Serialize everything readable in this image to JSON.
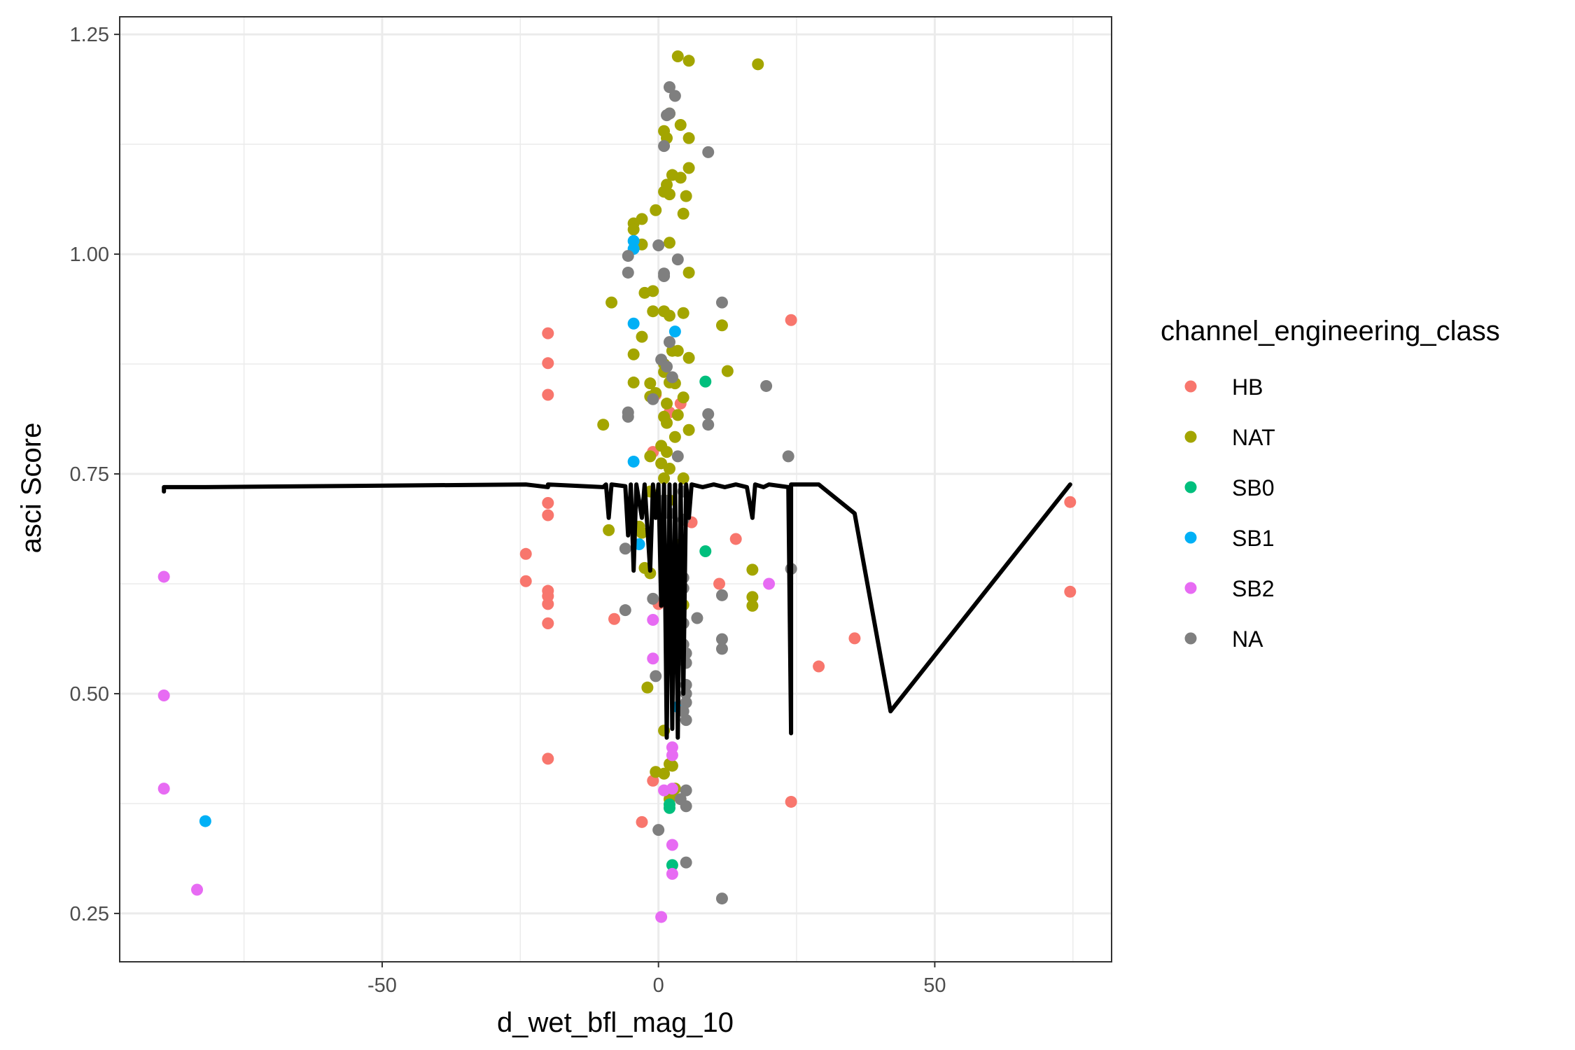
{
  "chart_data": {
    "type": "scatter",
    "xlabel": "d_wet_bfl_mag_10",
    "ylabel": "asci Score",
    "xlim": [
      -97.5,
      82
    ],
    "ylim": [
      0.195,
      1.27
    ],
    "x_ticks": [
      -50,
      0,
      50
    ],
    "x_tick_labels": [
      "-50",
      "0",
      "50"
    ],
    "x_minor_ticks": [
      -75,
      -25,
      25,
      75
    ],
    "y_ticks": [
      0.25,
      0.5,
      0.75,
      1.0,
      1.25
    ],
    "y_tick_labels": [
      "0.25",
      "0.50",
      "0.75",
      "1.00",
      "1.25"
    ],
    "y_minor_ticks": [
      0.375,
      0.625,
      0.875,
      1.125
    ],
    "grid": true,
    "legend": {
      "title": "channel_engineering_class",
      "position": "right",
      "entries": [
        {
          "label": "HB",
          "color": "#F8766D"
        },
        {
          "label": "NAT",
          "color": "#A3A500"
        },
        {
          "label": "SB0",
          "color": "#00BF7D"
        },
        {
          "label": "SB1",
          "color": "#00B0F6"
        },
        {
          "label": "SB2",
          "color": "#E76BF3"
        },
        {
          "label": "NA",
          "color": "#7F7F7F"
        }
      ]
    },
    "series": [
      {
        "name": "HB",
        "color": "#F8766D",
        "points": [
          [
            -20,
            0.91
          ],
          [
            -20,
            0.876
          ],
          [
            -20,
            0.84
          ],
          [
            -20,
            0.717
          ],
          [
            -20,
            0.703
          ],
          [
            -24,
            0.659
          ],
          [
            -24,
            0.628
          ],
          [
            -20,
            0.617
          ],
          [
            -20,
            0.611
          ],
          [
            -20,
            0.602
          ],
          [
            -20,
            0.58
          ],
          [
            -20,
            0.426
          ],
          [
            -8,
            0.585
          ],
          [
            -1,
            0.775
          ],
          [
            0,
            0.602
          ],
          [
            -1,
            0.401
          ],
          [
            -3,
            0.354
          ],
          [
            6,
            0.695
          ],
          [
            11,
            0.625
          ],
          [
            14,
            0.676
          ],
          [
            24,
            0.925
          ],
          [
            24,
            0.377
          ],
          [
            29,
            0.531
          ],
          [
            35.5,
            0.563
          ],
          [
            74.5,
            0.718
          ],
          [
            74.5,
            0.616
          ],
          [
            -0.5,
            0.84
          ],
          [
            2,
            0.82
          ],
          [
            4,
            0.83
          ]
        ]
      },
      {
        "name": "NAT",
        "color": "#A3A500",
        "points": [
          [
            3.5,
            1.225
          ],
          [
            5.5,
            1.22
          ],
          [
            18,
            1.216
          ],
          [
            2,
            1.16
          ],
          [
            4,
            1.147
          ],
          [
            1,
            1.14
          ],
          [
            1.5,
            1.132
          ],
          [
            5.5,
            1.132
          ],
          [
            5.5,
            1.098
          ],
          [
            2.5,
            1.09
          ],
          [
            4,
            1.087
          ],
          [
            1.5,
            1.079
          ],
          [
            1,
            1.071
          ],
          [
            5,
            1.066
          ],
          [
            2,
            1.068
          ],
          [
            -0.5,
            1.05
          ],
          [
            4.5,
            1.046
          ],
          [
            -3,
            1.04
          ],
          [
            -4.5,
            1.035
          ],
          [
            -4.5,
            1.028
          ],
          [
            2,
            1.013
          ],
          [
            -3,
            1.011
          ],
          [
            5.5,
            0.979
          ],
          [
            -1,
            0.958
          ],
          [
            -2.5,
            0.956
          ],
          [
            -8.5,
            0.945
          ],
          [
            4.5,
            0.933
          ],
          [
            1,
            0.935
          ],
          [
            -1,
            0.935
          ],
          [
            2,
            0.93
          ],
          [
            11.5,
            0.919
          ],
          [
            -3,
            0.906
          ],
          [
            2.5,
            0.89
          ],
          [
            3.5,
            0.89
          ],
          [
            -4.5,
            0.886
          ],
          [
            5.5,
            0.882
          ],
          [
            1,
            0.875
          ],
          [
            1,
            0.866
          ],
          [
            12.5,
            0.867
          ],
          [
            -4.5,
            0.854
          ],
          [
            2,
            0.854
          ],
          [
            -1.5,
            0.853
          ],
          [
            3,
            0.853
          ],
          [
            -0.5,
            0.842
          ],
          [
            -1.5,
            0.838
          ],
          [
            4.5,
            0.837
          ],
          [
            1.5,
            0.83
          ],
          [
            3.5,
            0.817
          ],
          [
            1,
            0.815
          ],
          [
            1.5,
            0.808
          ],
          [
            -10,
            0.806
          ],
          [
            5.5,
            0.8
          ],
          [
            3,
            0.792
          ],
          [
            0.5,
            0.782
          ],
          [
            1.5,
            0.775
          ],
          [
            -1.5,
            0.77
          ],
          [
            0.5,
            0.762
          ],
          [
            2,
            0.756
          ],
          [
            1,
            0.745
          ],
          [
            4.5,
            0.745
          ],
          [
            -1.5,
            0.73
          ],
          [
            2,
            0.72
          ],
          [
            -3.5,
            0.69
          ],
          [
            -3,
            0.683
          ],
          [
            -9,
            0.686
          ],
          [
            4,
            0.67
          ],
          [
            1,
            0.658
          ],
          [
            17,
            0.641
          ],
          [
            -2.5,
            0.643
          ],
          [
            -1.5,
            0.637
          ],
          [
            3,
            0.632
          ],
          [
            17,
            0.61
          ],
          [
            17,
            0.6
          ],
          [
            4.5,
            0.601
          ],
          [
            -2,
            0.507
          ],
          [
            1,
            0.458
          ],
          [
            -0.5,
            0.411
          ],
          [
            1,
            0.409
          ],
          [
            2,
            0.42
          ],
          [
            2.5,
            0.418
          ],
          [
            3,
            0.392
          ],
          [
            2,
            0.38
          ],
          [
            2.5,
            0.385
          ]
        ]
      },
      {
        "name": "SB0",
        "color": "#00BF7D",
        "points": [
          [
            8.5,
            0.855
          ],
          [
            8.5,
            0.662
          ],
          [
            2,
            0.37
          ],
          [
            2,
            0.374
          ],
          [
            2.5,
            0.305
          ]
        ]
      },
      {
        "name": "SB1",
        "color": "#00B0F6",
        "points": [
          [
            -4.5,
            1.015
          ],
          [
            -4.5,
            1.006
          ],
          [
            -4.5,
            0.921
          ],
          [
            3,
            0.912
          ],
          [
            -4.5,
            0.764
          ],
          [
            -3.5,
            0.67
          ],
          [
            3.5,
            0.485
          ],
          [
            -82,
            0.355
          ]
        ]
      },
      {
        "name": "SB2",
        "color": "#E76BF3",
        "points": [
          [
            -89.5,
            0.633
          ],
          [
            -89.5,
            0.498
          ],
          [
            -89.5,
            0.392
          ],
          [
            -83.5,
            0.277
          ],
          [
            -1,
            0.584
          ],
          [
            -1,
            0.54
          ],
          [
            2,
            0.565
          ],
          [
            2.5,
            0.439
          ],
          [
            2.5,
            0.43
          ],
          [
            1,
            0.39
          ],
          [
            2.5,
            0.392
          ],
          [
            2.5,
            0.328
          ],
          [
            2.5,
            0.295
          ],
          [
            0.5,
            0.246
          ],
          [
            20,
            0.625
          ]
        ]
      },
      {
        "name": "NA",
        "color": "#7F7F7F",
        "points": [
          [
            2,
            1.19
          ],
          [
            3,
            1.18
          ],
          [
            1.5,
            1.158
          ],
          [
            2,
            1.16
          ],
          [
            9,
            1.116
          ],
          [
            1,
            1.123
          ],
          [
            0,
            1.01
          ],
          [
            1,
            0.978
          ],
          [
            -5.5,
            0.998
          ],
          [
            -5.5,
            0.979
          ],
          [
            3.5,
            0.994
          ],
          [
            1,
            0.975
          ],
          [
            11.5,
            0.945
          ],
          [
            2,
            0.9
          ],
          [
            0.5,
            0.88
          ],
          [
            1.5,
            0.872
          ],
          [
            2.5,
            0.86
          ],
          [
            19.5,
            0.85
          ],
          [
            -5.5,
            0.82
          ],
          [
            -5.5,
            0.815
          ],
          [
            -1,
            0.835
          ],
          [
            9,
            0.818
          ],
          [
            9,
            0.806
          ],
          [
            3.5,
            0.77
          ],
          [
            23.5,
            0.77
          ],
          [
            -6,
            0.595
          ],
          [
            -6,
            0.665
          ],
          [
            1,
            0.72
          ],
          [
            1,
            0.71
          ],
          [
            4.5,
            0.73
          ],
          [
            2,
            0.705
          ],
          [
            4.5,
            0.698
          ],
          [
            2.5,
            0.668
          ],
          [
            4.5,
            0.632
          ],
          [
            4.5,
            0.62
          ],
          [
            -1,
            0.608
          ],
          [
            4.5,
            0.58
          ],
          [
            7,
            0.586
          ],
          [
            11.5,
            0.612
          ],
          [
            24,
            0.642
          ],
          [
            11.5,
            0.562
          ],
          [
            11.5,
            0.551
          ],
          [
            4.5,
            0.556
          ],
          [
            5,
            0.546
          ],
          [
            5,
            0.535
          ],
          [
            5,
            0.51
          ],
          [
            5,
            0.5
          ],
          [
            5,
            0.49
          ],
          [
            4.5,
            0.48
          ],
          [
            5,
            0.47
          ],
          [
            3,
            0.55
          ],
          [
            -0.5,
            0.52
          ],
          [
            5,
            0.39
          ],
          [
            5,
            0.372
          ],
          [
            4,
            0.38
          ],
          [
            0,
            0.345
          ],
          [
            5,
            0.308
          ],
          [
            11.5,
            0.267
          ]
        ]
      }
    ],
    "line": {
      "name": "",
      "color": "#000000",
      "points": [
        [
          -89.5,
          0.73
        ],
        [
          -89.5,
          0.735
        ],
        [
          -82,
          0.735
        ],
        [
          -24,
          0.738
        ],
        [
          -20,
          0.735
        ],
        [
          -20,
          0.738
        ],
        [
          -10,
          0.735
        ],
        [
          -9.5,
          0.738
        ],
        [
          -9,
          0.7
        ],
        [
          -8.5,
          0.738
        ],
        [
          -6,
          0.736
        ],
        [
          -5.5,
          0.68
        ],
        [
          -5,
          0.738
        ],
        [
          -4.5,
          0.64
        ],
        [
          -4,
          0.738
        ],
        [
          -3,
          0.7
        ],
        [
          -2.5,
          0.738
        ],
        [
          -1.5,
          0.64
        ],
        [
          -1,
          0.738
        ],
        [
          -0.5,
          0.7
        ],
        [
          0,
          0.738
        ],
        [
          0.5,
          0.6
        ],
        [
          1,
          0.738
        ],
        [
          1.5,
          0.45
        ],
        [
          2,
          0.738
        ],
        [
          2.5,
          0.46
        ],
        [
          3,
          0.738
        ],
        [
          3.5,
          0.45
        ],
        [
          4,
          0.738
        ],
        [
          4.5,
          0.5
        ],
        [
          5,
          0.738
        ],
        [
          5.5,
          0.7
        ],
        [
          6,
          0.738
        ],
        [
          8,
          0.735
        ],
        [
          10,
          0.738
        ],
        [
          12,
          0.735
        ],
        [
          14,
          0.738
        ],
        [
          16,
          0.735
        ],
        [
          17,
          0.7
        ],
        [
          17.5,
          0.738
        ],
        [
          19,
          0.735
        ],
        [
          20,
          0.738
        ],
        [
          23.5,
          0.735
        ],
        [
          24,
          0.455
        ],
        [
          24,
          0.738
        ],
        [
          29,
          0.738
        ],
        [
          35.5,
          0.705
        ],
        [
          42,
          0.48
        ],
        [
          74.5,
          0.738
        ]
      ]
    }
  }
}
